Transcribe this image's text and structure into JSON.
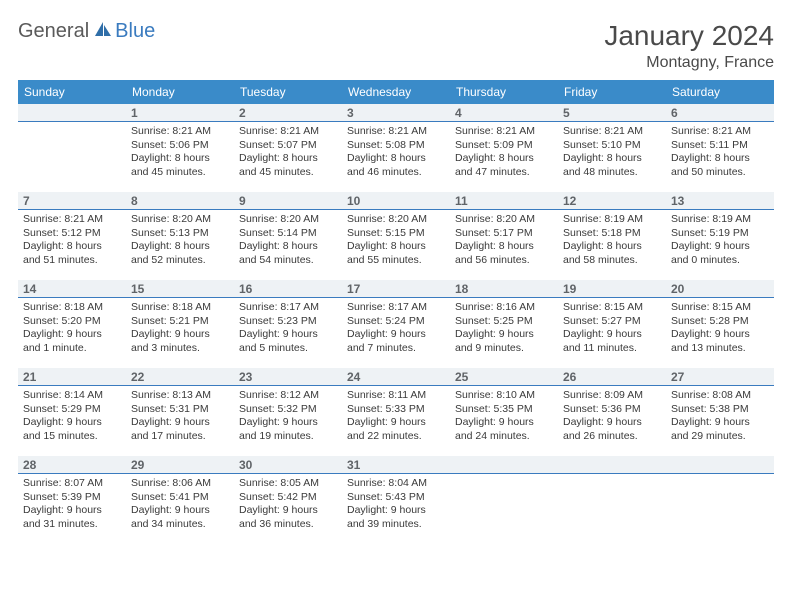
{
  "logo": {
    "text1": "General",
    "text2": "Blue"
  },
  "title": {
    "month_year": "January 2024",
    "location": "Montagny, France"
  },
  "colors": {
    "header_bg": "#3a8bc9",
    "header_text": "#ffffff",
    "daynum_bg": "#eef2f5",
    "daynum_border": "#3a7bbf",
    "body_text": "#3a3a3a",
    "daynum_text": "#606468",
    "logo_gray": "#5a5a5a",
    "logo_blue": "#3a7bbf"
  },
  "weekdays": [
    "Sunday",
    "Monday",
    "Tuesday",
    "Wednesday",
    "Thursday",
    "Friday",
    "Saturday"
  ],
  "weeks": [
    [
      {
        "n": "",
        "lines": [
          "",
          "",
          "",
          ""
        ]
      },
      {
        "n": "1",
        "lines": [
          "Sunrise: 8:21 AM",
          "Sunset: 5:06 PM",
          "Daylight: 8 hours",
          "and 45 minutes."
        ]
      },
      {
        "n": "2",
        "lines": [
          "Sunrise: 8:21 AM",
          "Sunset: 5:07 PM",
          "Daylight: 8 hours",
          "and 45 minutes."
        ]
      },
      {
        "n": "3",
        "lines": [
          "Sunrise: 8:21 AM",
          "Sunset: 5:08 PM",
          "Daylight: 8 hours",
          "and 46 minutes."
        ]
      },
      {
        "n": "4",
        "lines": [
          "Sunrise: 8:21 AM",
          "Sunset: 5:09 PM",
          "Daylight: 8 hours",
          "and 47 minutes."
        ]
      },
      {
        "n": "5",
        "lines": [
          "Sunrise: 8:21 AM",
          "Sunset: 5:10 PM",
          "Daylight: 8 hours",
          "and 48 minutes."
        ]
      },
      {
        "n": "6",
        "lines": [
          "Sunrise: 8:21 AM",
          "Sunset: 5:11 PM",
          "Daylight: 8 hours",
          "and 50 minutes."
        ]
      }
    ],
    [
      {
        "n": "7",
        "lines": [
          "Sunrise: 8:21 AM",
          "Sunset: 5:12 PM",
          "Daylight: 8 hours",
          "and 51 minutes."
        ]
      },
      {
        "n": "8",
        "lines": [
          "Sunrise: 8:20 AM",
          "Sunset: 5:13 PM",
          "Daylight: 8 hours",
          "and 52 minutes."
        ]
      },
      {
        "n": "9",
        "lines": [
          "Sunrise: 8:20 AM",
          "Sunset: 5:14 PM",
          "Daylight: 8 hours",
          "and 54 minutes."
        ]
      },
      {
        "n": "10",
        "lines": [
          "Sunrise: 8:20 AM",
          "Sunset: 5:15 PM",
          "Daylight: 8 hours",
          "and 55 minutes."
        ]
      },
      {
        "n": "11",
        "lines": [
          "Sunrise: 8:20 AM",
          "Sunset: 5:17 PM",
          "Daylight: 8 hours",
          "and 56 minutes."
        ]
      },
      {
        "n": "12",
        "lines": [
          "Sunrise: 8:19 AM",
          "Sunset: 5:18 PM",
          "Daylight: 8 hours",
          "and 58 minutes."
        ]
      },
      {
        "n": "13",
        "lines": [
          "Sunrise: 8:19 AM",
          "Sunset: 5:19 PM",
          "Daylight: 9 hours",
          "and 0 minutes."
        ]
      }
    ],
    [
      {
        "n": "14",
        "lines": [
          "Sunrise: 8:18 AM",
          "Sunset: 5:20 PM",
          "Daylight: 9 hours",
          "and 1 minute."
        ]
      },
      {
        "n": "15",
        "lines": [
          "Sunrise: 8:18 AM",
          "Sunset: 5:21 PM",
          "Daylight: 9 hours",
          "and 3 minutes."
        ]
      },
      {
        "n": "16",
        "lines": [
          "Sunrise: 8:17 AM",
          "Sunset: 5:23 PM",
          "Daylight: 9 hours",
          "and 5 minutes."
        ]
      },
      {
        "n": "17",
        "lines": [
          "Sunrise: 8:17 AM",
          "Sunset: 5:24 PM",
          "Daylight: 9 hours",
          "and 7 minutes."
        ]
      },
      {
        "n": "18",
        "lines": [
          "Sunrise: 8:16 AM",
          "Sunset: 5:25 PM",
          "Daylight: 9 hours",
          "and 9 minutes."
        ]
      },
      {
        "n": "19",
        "lines": [
          "Sunrise: 8:15 AM",
          "Sunset: 5:27 PM",
          "Daylight: 9 hours",
          "and 11 minutes."
        ]
      },
      {
        "n": "20",
        "lines": [
          "Sunrise: 8:15 AM",
          "Sunset: 5:28 PM",
          "Daylight: 9 hours",
          "and 13 minutes."
        ]
      }
    ],
    [
      {
        "n": "21",
        "lines": [
          "Sunrise: 8:14 AM",
          "Sunset: 5:29 PM",
          "Daylight: 9 hours",
          "and 15 minutes."
        ]
      },
      {
        "n": "22",
        "lines": [
          "Sunrise: 8:13 AM",
          "Sunset: 5:31 PM",
          "Daylight: 9 hours",
          "and 17 minutes."
        ]
      },
      {
        "n": "23",
        "lines": [
          "Sunrise: 8:12 AM",
          "Sunset: 5:32 PM",
          "Daylight: 9 hours",
          "and 19 minutes."
        ]
      },
      {
        "n": "24",
        "lines": [
          "Sunrise: 8:11 AM",
          "Sunset: 5:33 PM",
          "Daylight: 9 hours",
          "and 22 minutes."
        ]
      },
      {
        "n": "25",
        "lines": [
          "Sunrise: 8:10 AM",
          "Sunset: 5:35 PM",
          "Daylight: 9 hours",
          "and 24 minutes."
        ]
      },
      {
        "n": "26",
        "lines": [
          "Sunrise: 8:09 AM",
          "Sunset: 5:36 PM",
          "Daylight: 9 hours",
          "and 26 minutes."
        ]
      },
      {
        "n": "27",
        "lines": [
          "Sunrise: 8:08 AM",
          "Sunset: 5:38 PM",
          "Daylight: 9 hours",
          "and 29 minutes."
        ]
      }
    ],
    [
      {
        "n": "28",
        "lines": [
          "Sunrise: 8:07 AM",
          "Sunset: 5:39 PM",
          "Daylight: 9 hours",
          "and 31 minutes."
        ]
      },
      {
        "n": "29",
        "lines": [
          "Sunrise: 8:06 AM",
          "Sunset: 5:41 PM",
          "Daylight: 9 hours",
          "and 34 minutes."
        ]
      },
      {
        "n": "30",
        "lines": [
          "Sunrise: 8:05 AM",
          "Sunset: 5:42 PM",
          "Daylight: 9 hours",
          "and 36 minutes."
        ]
      },
      {
        "n": "31",
        "lines": [
          "Sunrise: 8:04 AM",
          "Sunset: 5:43 PM",
          "Daylight: 9 hours",
          "and 39 minutes."
        ]
      },
      {
        "n": "",
        "lines": [
          "",
          "",
          "",
          ""
        ]
      },
      {
        "n": "",
        "lines": [
          "",
          "",
          "",
          ""
        ]
      },
      {
        "n": "",
        "lines": [
          "",
          "",
          "",
          ""
        ]
      }
    ]
  ]
}
